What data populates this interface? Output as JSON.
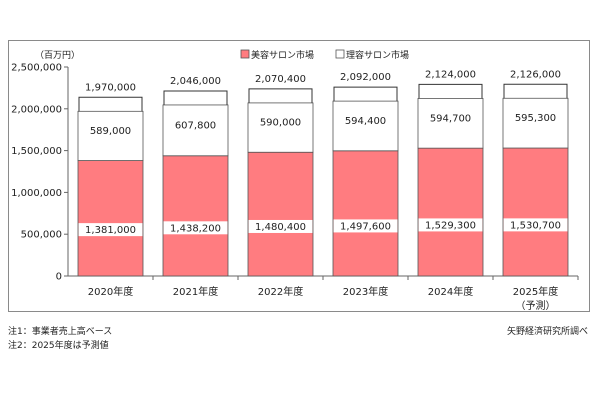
{
  "chart_data": {
    "type": "bar",
    "stacked": true,
    "unit_label": "（百万円）",
    "categories": [
      "2020年度",
      "2021年度",
      "2022年度",
      "2023年度",
      "2024年度",
      "2025年度"
    ],
    "category_sublabels": [
      "",
      "",
      "",
      "",
      "",
      "（予測）"
    ],
    "series": [
      {
        "name": "美容サロン市場",
        "color": "#ff7c80",
        "values": [
          1381000,
          1438200,
          1480400,
          1497600,
          1529300,
          1530700
        ],
        "labels": [
          "1,381,000",
          "1,438,200",
          "1,480,400",
          "1,497,600",
          "1,529,300",
          "1,530,700"
        ]
      },
      {
        "name": "理容サロン市場",
        "color": "#ffffff",
        "values": [
          589000,
          607800,
          590000,
          594400,
          594700,
          595300
        ],
        "labels": [
          "589,000",
          "607,800",
          "590,000",
          "594,400",
          "594,700",
          "595,300"
        ]
      }
    ],
    "totals": [
      1970000,
      2046000,
      2070400,
      2092000,
      2124000,
      2126000
    ],
    "total_labels": [
      "1,970,000",
      "2,046,000",
      "2,070,400",
      "2,092,000",
      "2,124,000",
      "2,126,000"
    ],
    "ylim": [
      0,
      2500000
    ],
    "yticks": [
      0,
      500000,
      1000000,
      1500000,
      2000000,
      2500000
    ],
    "ytick_labels": [
      "0",
      "500,000",
      "1,000,000",
      "1,500,000",
      "2,000,000",
      "2,500,000"
    ],
    "legend_position": "top-center",
    "grid": false
  },
  "notes": {
    "note1": "注1：事業者売上高ベース",
    "note2": "注2：2025年度は予測値",
    "source": "矢野経済研究所調べ"
  }
}
